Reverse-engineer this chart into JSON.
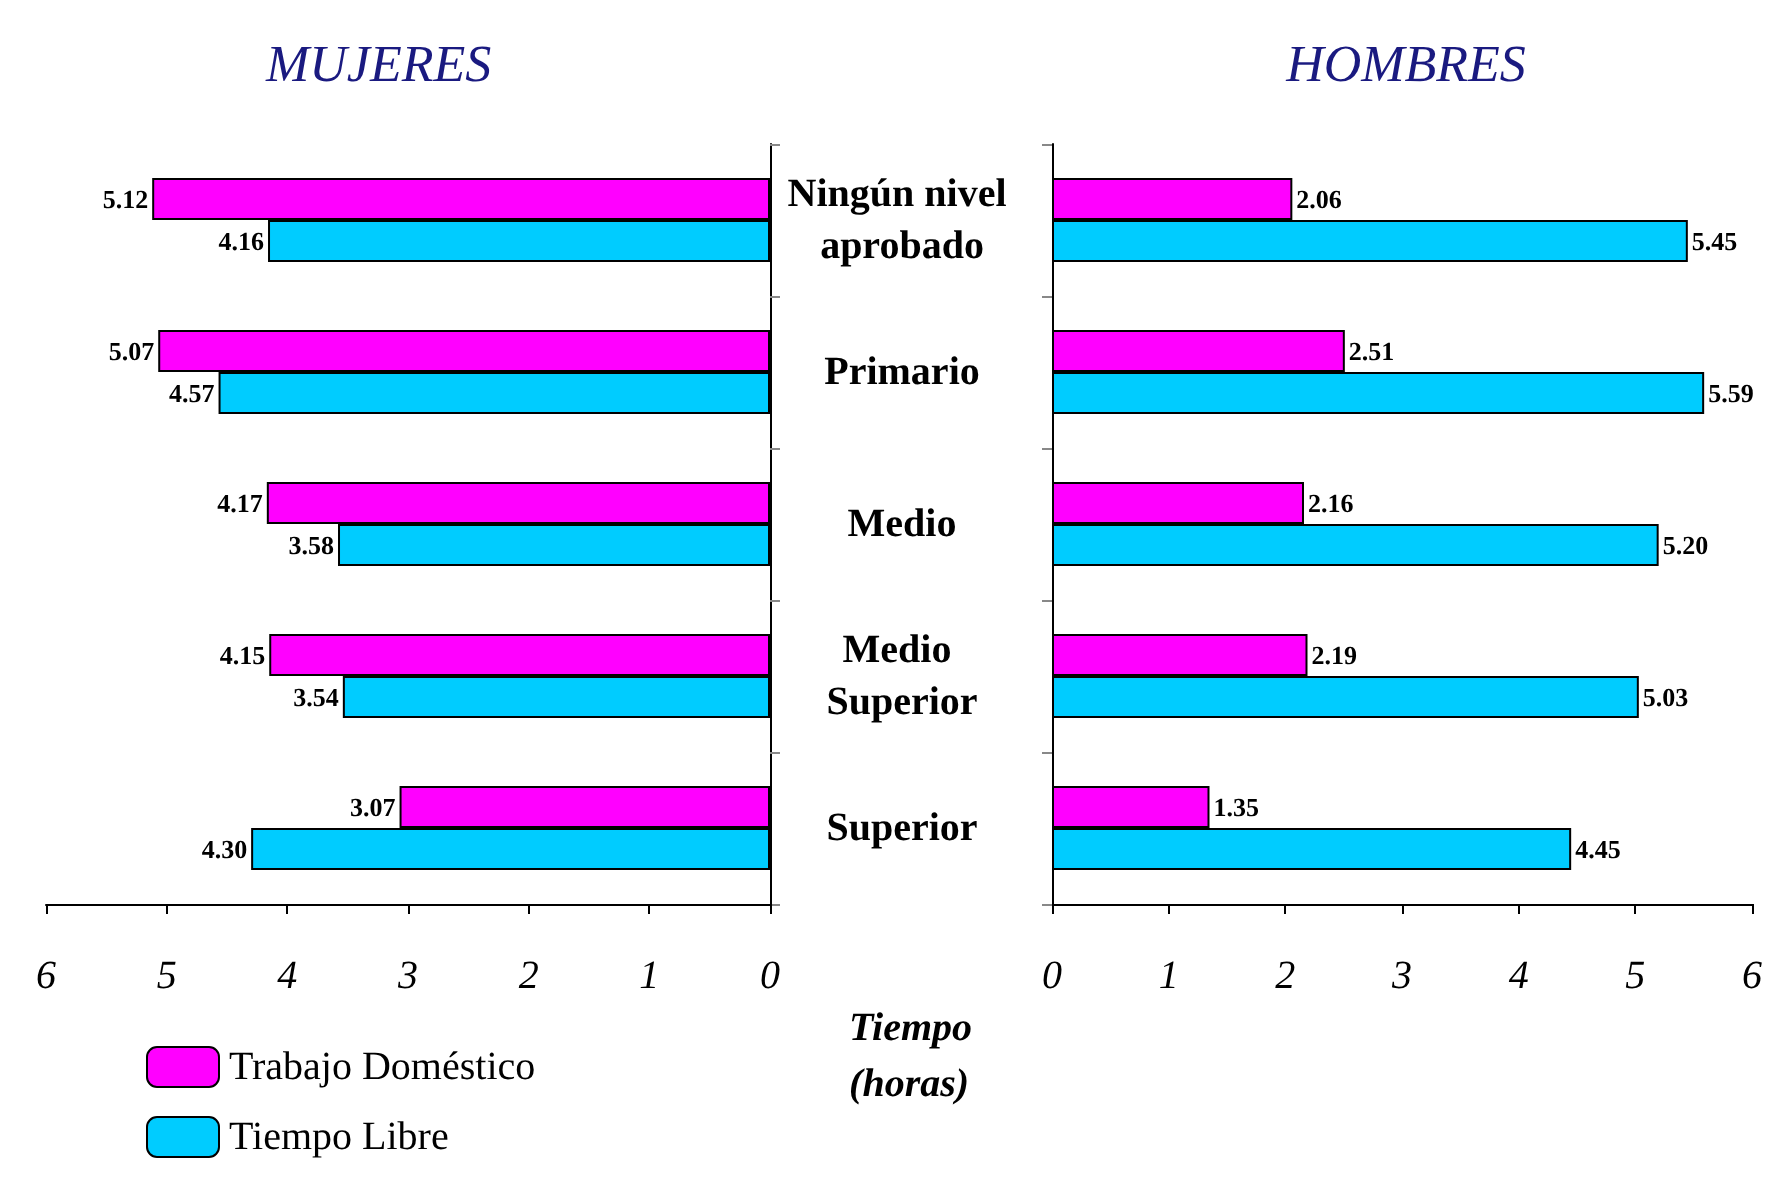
{
  "chart_data": [
    {
      "type": "bar",
      "title": "MUJERES",
      "orientation": "horizontal",
      "categories": [
        "Ningún nivel aprobado",
        "Primario",
        "Medio",
        "Medio Superior",
        "Superior"
      ],
      "series": [
        {
          "name": "Trabajo Doméstico",
          "color": "#ff00ff",
          "values": [
            5.12,
            5.07,
            4.17,
            4.15,
            3.07
          ],
          "value_labels": [
            "5.12",
            "5.07",
            "4.17",
            "4.15",
            "3.07"
          ]
        },
        {
          "name": "Tiempo Libre",
          "color": "#00ccff",
          "values": [
            4.16,
            4.57,
            3.58,
            3.54,
            4.3
          ],
          "value_labels": [
            "4.16",
            "4.57",
            "3.58",
            "3.54",
            "4.30"
          ]
        }
      ],
      "xlim": [
        6,
        0
      ],
      "xticks": [
        6,
        5,
        4,
        3,
        2,
        1,
        0
      ],
      "xlabel": "Tiempo (horas)",
      "legend": "bottom left",
      "grid": false
    },
    {
      "type": "bar",
      "title": "HOMBRES",
      "orientation": "horizontal",
      "categories": [
        "Ningún nivel aprobado",
        "Primario",
        "Medio",
        "Medio Superior",
        "Superior"
      ],
      "series": [
        {
          "color": "#ff00ff",
          "values": [
            2.06,
            2.51,
            2.16,
            2.19,
            1.35
          ],
          "value_labels": [
            "2.06",
            "2.51",
            "2.16",
            "2.19",
            "1.35"
          ]
        },
        {
          "color": "#00ccff",
          "values": [
            5.45,
            5.59,
            5.2,
            5.03,
            4.45
          ],
          "value_labels": [
            "5.45",
            "5.59",
            "5.20",
            "5.03",
            "4.45"
          ]
        }
      ],
      "xlim": [
        0,
        6
      ],
      "xticks": [
        0,
        1,
        2,
        3,
        4,
        5,
        6
      ],
      "tick_labels": "x",
      "legend": false,
      "grid": false
    }
  ]
}
